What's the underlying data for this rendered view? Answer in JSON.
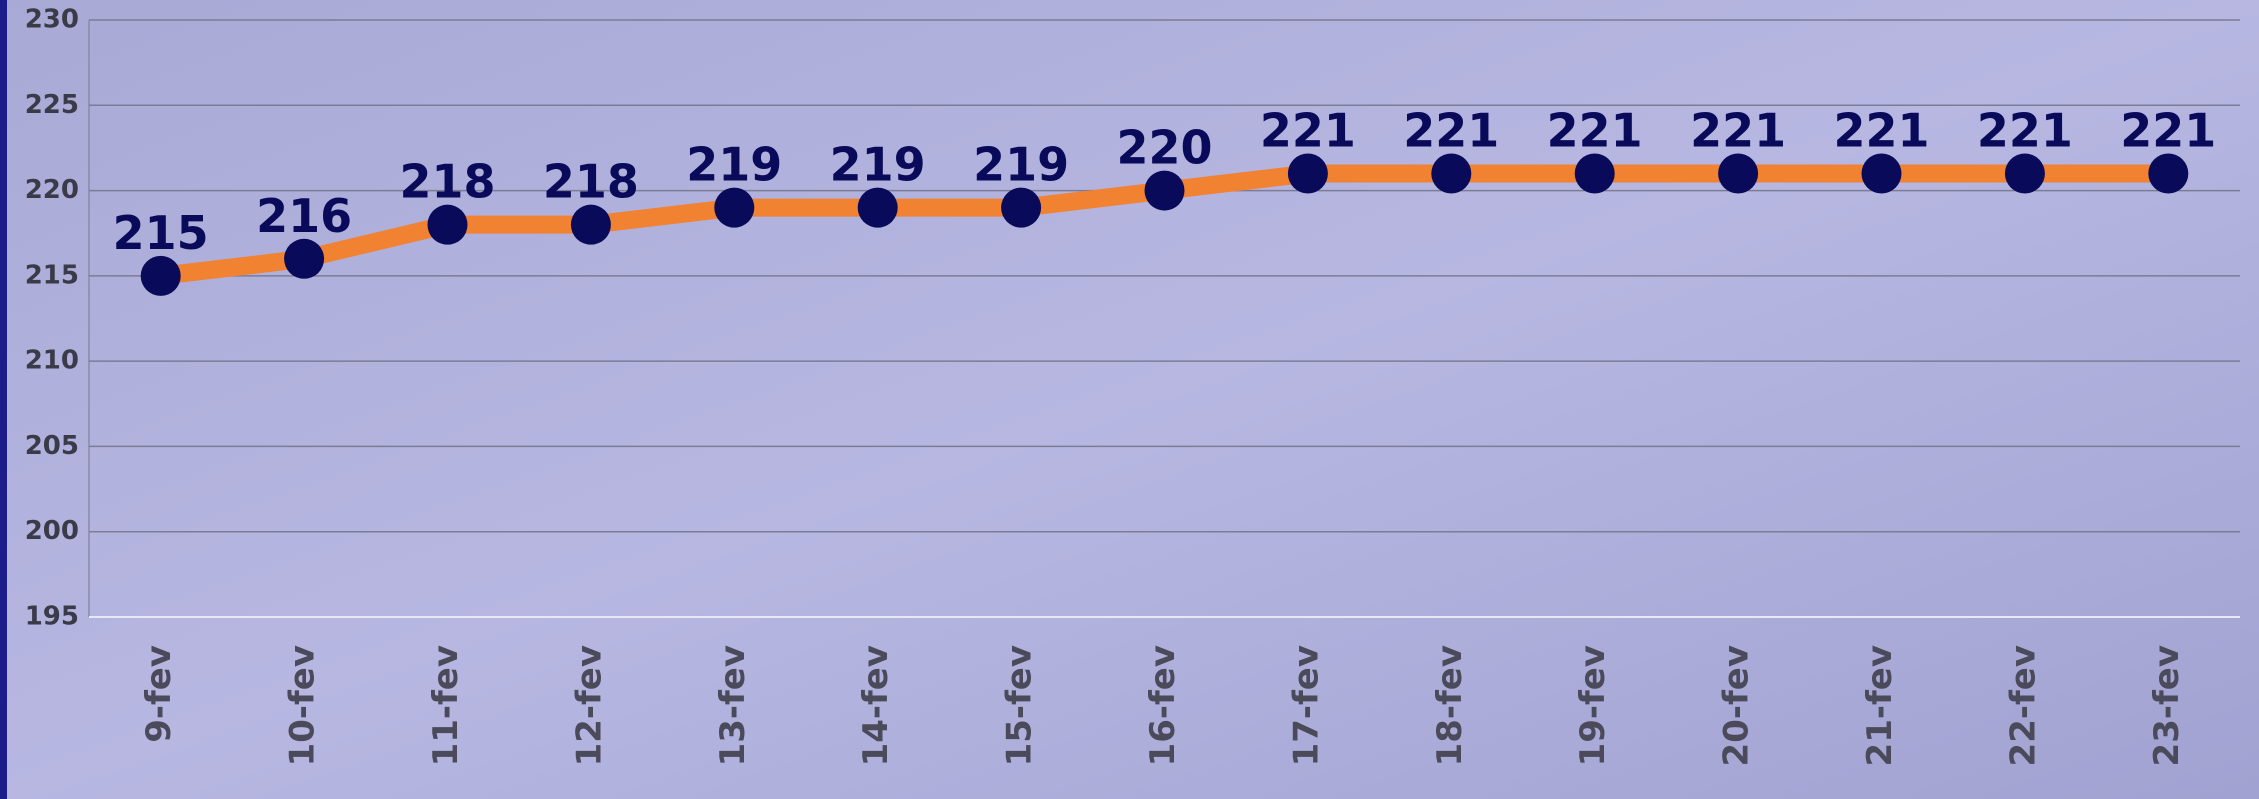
{
  "chart_data": {
    "type": "line",
    "categories": [
      "9-fev",
      "10-fev",
      "11-fev",
      "12-fev",
      "13-fev",
      "14-fev",
      "15-fev",
      "16-fev",
      "17-fev",
      "18-fev",
      "19-fev",
      "20-fev",
      "21-fev",
      "22-fev",
      "23-fev"
    ],
    "series": [
      {
        "color": "#f08232",
        "marker_color": "#0a0a5a",
        "values": [
          215,
          216,
          218,
          218,
          219,
          219,
          219,
          220,
          221,
          221,
          221,
          221,
          221,
          221,
          221
        ]
      }
    ],
    "ylim": [
      195,
      230
    ],
    "yticks": [
      195,
      200,
      205,
      210,
      215,
      220,
      225,
      230
    ],
    "grid": true
  }
}
